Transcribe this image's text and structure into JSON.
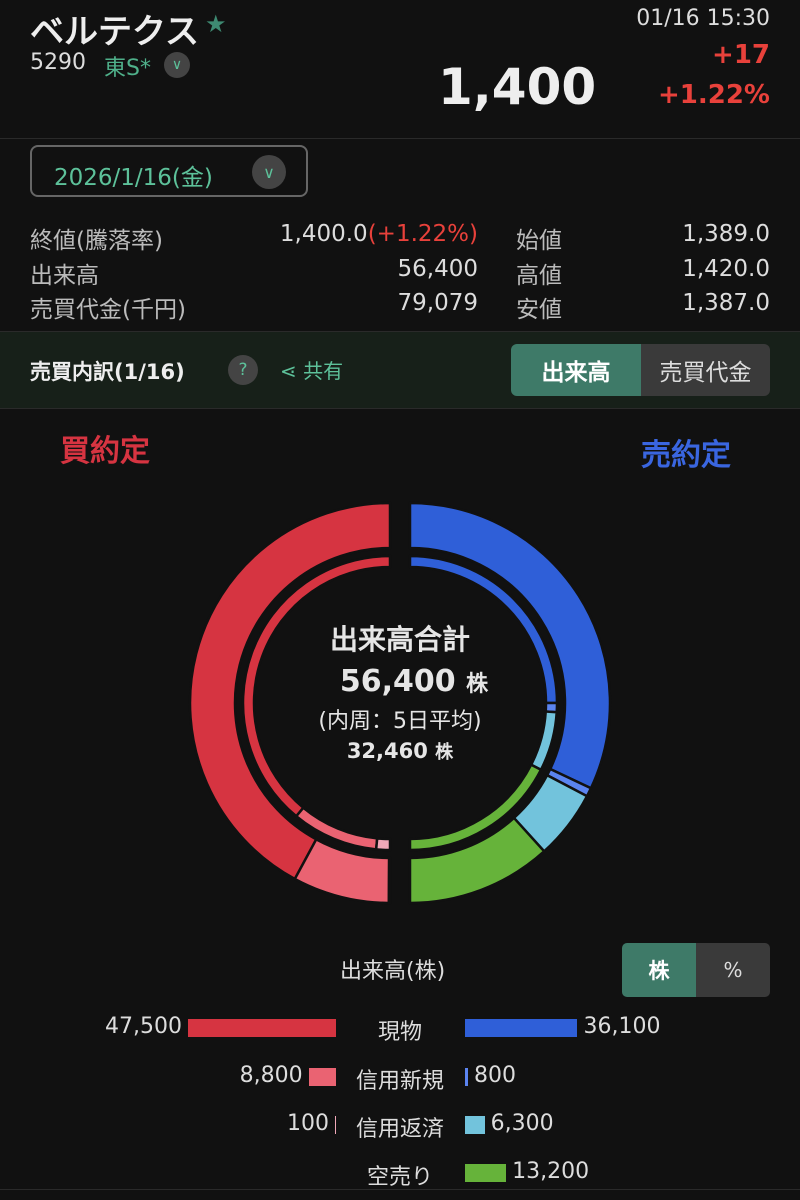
{
  "header": {
    "name": "ベルテクス",
    "star_icon": "star-icon",
    "code": "5290",
    "market": "東S*",
    "datetime": "01/16 15:30",
    "price": "1,400",
    "change": "+17",
    "change_pct": "+1.22%"
  },
  "date_selector": {
    "value": "2026/1/16(金)"
  },
  "stats": {
    "close_label": "終値(騰落率)",
    "close_value": "1,400.0",
    "close_pct": "(+1.22%)",
    "volume_label": "出来高",
    "volume_value": "56,400",
    "turnover_label": "売買代金(千円)",
    "turnover_value": "79,079",
    "open_label": "始値",
    "open_value": "1,389.0",
    "high_label": "高値",
    "high_value": "1,420.0",
    "low_label": "安値",
    "low_value": "1,387.0"
  },
  "breakdown": {
    "title": "売買内訳(1/16)",
    "help": "?",
    "share": "共有",
    "tabs": [
      "出来高",
      "売買代金"
    ],
    "active_tab": 0
  },
  "colors": {
    "accent": "#3e7a68",
    "up": "#e8413b",
    "buy": "#d63441",
    "sell": "#2f5fd8"
  },
  "chart_data": {
    "type": "donut",
    "buy_label": "買約定",
    "sell_label": "売約定",
    "center": {
      "title": "出来高合計",
      "total": "56,400",
      "unit": "株",
      "sub": "(内周：5日平均)",
      "avg": "32,460"
    },
    "categories_buy": [
      "現物",
      "信用新規",
      "信用返済"
    ],
    "buy": [
      47500,
      8800,
      100
    ],
    "buy_colors": [
      "#d63441",
      "#ea6372",
      "#f0a8b8"
    ],
    "categories_sell": [
      "現物",
      "信用新規",
      "信用返済",
      "空売り"
    ],
    "sell": [
      36100,
      800,
      6300,
      13200
    ],
    "sell_colors": [
      "#2f5fd8",
      "#5b84f0",
      "#72c3dc",
      "#66b33a"
    ],
    "inner_buy_share_est": [
      78,
      19,
      3
    ],
    "inner_sell_share_est": [
      50,
      2,
      13,
      35
    ]
  },
  "legend": {
    "title": "出来高(株)",
    "toggle": [
      "株",
      "%"
    ],
    "active": 0,
    "rows": [
      {
        "label": "現物",
        "buy": "47,500",
        "sell": "36,100"
      },
      {
        "label": "信用新規",
        "buy": "8,800",
        "sell": "800"
      },
      {
        "label": "信用返済",
        "buy": "100",
        "sell": "6,300"
      },
      {
        "label": "空売り",
        "buy": "",
        "sell": "13,200"
      }
    ]
  }
}
